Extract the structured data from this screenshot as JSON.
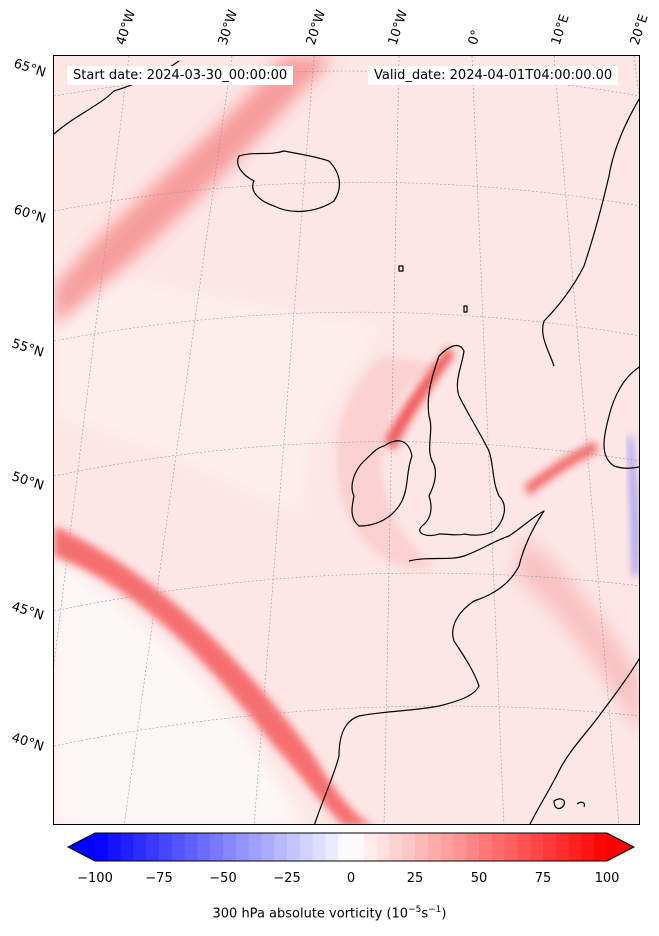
{
  "header": {
    "start_date": "Start date: 2024-03-30_00:00:00",
    "valid_date": "Valid_date: 2024-04-01T04:00:00.00"
  },
  "map": {
    "latitude_labels": [
      "65°N",
      "60°N",
      "55°N",
      "50°N",
      "45°N",
      "40°N"
    ],
    "longitude_labels": [
      "40°W",
      "30°W",
      "20°W",
      "10°W",
      "0°",
      "10°E",
      "20°E"
    ],
    "field": "300 hPa absolute vorticity",
    "colormap": "bwr",
    "coastline_color": "#000000"
  },
  "colorbar": {
    "ticks": [
      "−100",
      "−75",
      "−50",
      "−25",
      "0",
      "25",
      "50",
      "75",
      "100"
    ],
    "min": -100,
    "max": 100,
    "label_text": "300 hPa absolute vorticity (10",
    "label_exp1": "−5",
    "label_mid": "s",
    "label_exp2": "−1",
    "label_end": ")",
    "color_low": "#0000ff",
    "color_mid": "#ffffff",
    "color_high": "#ff0000"
  }
}
